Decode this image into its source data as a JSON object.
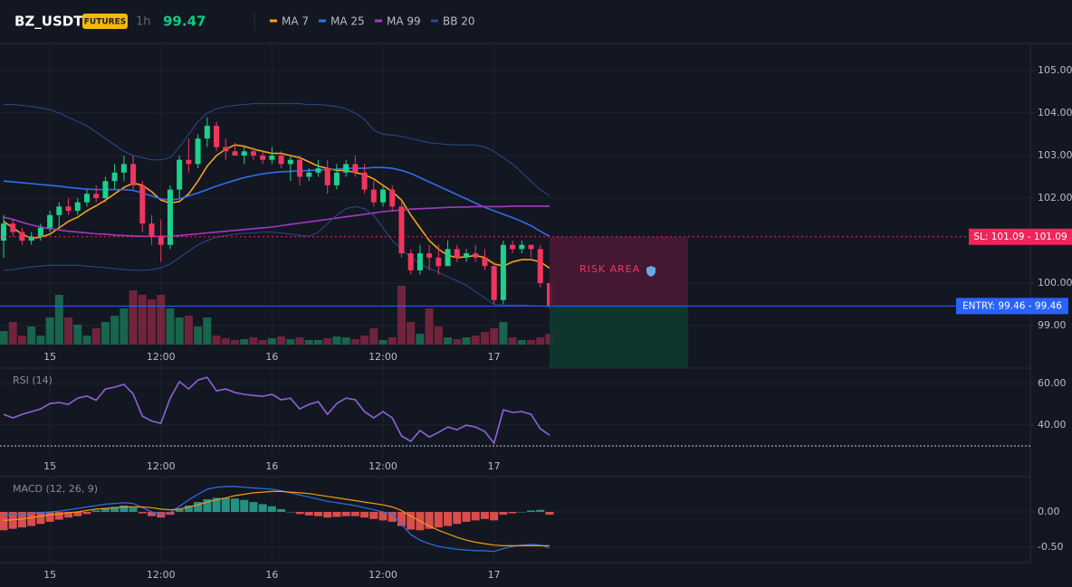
{
  "header": {
    "symbol": "BZ_USDT",
    "badge": "FUTURES",
    "interval": "1h",
    "price": 99.47
  },
  "chart_data": [
    {
      "type": "candlestick",
      "categories": [
        null,
        null,
        null,
        null,
        null,
        "15",
        null,
        null,
        null,
        null,
        null,
        null,
        null,
        null,
        null,
        null,
        null,
        "12:00",
        null,
        null,
        null,
        null,
        null,
        null,
        null,
        null,
        null,
        null,
        null,
        "16",
        null,
        null,
        null,
        null,
        null,
        null,
        null,
        null,
        null,
        null,
        null,
        "12:00",
        null,
        null,
        null,
        null,
        null,
        null,
        null,
        null,
        null,
        null,
        null,
        "17",
        null,
        null,
        null,
        null,
        null,
        null
      ],
      "open": [
        101.0,
        101.4,
        101.2,
        101.0,
        101.1,
        101.3,
        101.6,
        101.8,
        101.7,
        101.9,
        102.1,
        102.0,
        102.4,
        102.6,
        102.8,
        102.3,
        101.4,
        101.1,
        100.9,
        102.2,
        102.9,
        102.8,
        103.4,
        103.7,
        103.2,
        103.1,
        103.0,
        103.1,
        103.0,
        102.9,
        103.0,
        102.8,
        102.9,
        102.5,
        102.6,
        102.7,
        102.3,
        102.6,
        102.8,
        102.6,
        102.2,
        101.9,
        102.2,
        101.8,
        100.7,
        100.3,
        100.7,
        100.6,
        100.4,
        100.8,
        100.6,
        100.7,
        100.6,
        100.4,
        99.6,
        100.9,
        100.8,
        100.9,
        100.8,
        100.0
      ],
      "high": [
        101.6,
        101.5,
        101.3,
        101.2,
        101.4,
        101.7,
        101.9,
        102.0,
        102.0,
        102.2,
        102.3,
        102.5,
        102.8,
        103.0,
        103.0,
        102.4,
        101.6,
        101.5,
        102.3,
        103.0,
        103.4,
        103.5,
        103.9,
        103.8,
        103.4,
        103.3,
        103.2,
        103.2,
        103.1,
        103.2,
        103.1,
        103.0,
        103.0,
        102.7,
        102.9,
        102.9,
        102.8,
        102.9,
        103.0,
        102.8,
        102.4,
        102.3,
        102.3,
        101.9,
        100.8,
        100.9,
        100.9,
        100.9,
        101.0,
        100.9,
        100.8,
        100.9,
        100.8,
        100.5,
        101.0,
        101.0,
        101.0,
        100.9,
        100.9,
        100.0
      ],
      "low": [
        100.6,
        101.1,
        100.9,
        100.9,
        101.0,
        101.2,
        101.3,
        101.6,
        101.6,
        101.8,
        101.9,
        101.9,
        102.2,
        102.4,
        102.2,
        101.2,
        100.9,
        100.5,
        100.8,
        102.0,
        102.6,
        102.7,
        103.2,
        103.1,
        102.9,
        103.0,
        102.8,
        102.9,
        102.8,
        102.8,
        102.7,
        102.4,
        102.3,
        102.4,
        102.5,
        102.1,
        102.2,
        102.5,
        102.5,
        102.1,
        101.8,
        101.8,
        101.7,
        100.6,
        100.2,
        100.2,
        100.3,
        100.2,
        100.4,
        100.5,
        100.5,
        100.5,
        100.3,
        99.5,
        99.5,
        100.7,
        100.7,
        100.6,
        99.9,
        99.4
      ],
      "close": [
        101.4,
        101.2,
        101.0,
        101.1,
        101.3,
        101.6,
        101.8,
        101.7,
        101.9,
        102.1,
        102.0,
        102.4,
        102.6,
        102.8,
        102.3,
        101.4,
        101.1,
        100.9,
        102.2,
        102.9,
        102.8,
        103.4,
        103.7,
        103.2,
        103.1,
        103.0,
        103.1,
        103.0,
        102.9,
        103.0,
        102.8,
        102.9,
        102.5,
        102.6,
        102.7,
        102.3,
        102.6,
        102.8,
        102.6,
        102.2,
        101.9,
        102.2,
        101.8,
        100.7,
        100.3,
        100.7,
        100.6,
        100.4,
        100.8,
        100.6,
        100.7,
        100.6,
        100.4,
        99.6,
        100.9,
        100.8,
        100.9,
        100.8,
        100.0,
        99.47
      ],
      "volume": [
        15,
        25,
        10,
        20,
        10,
        30,
        55,
        30,
        22,
        10,
        18,
        25,
        32,
        40,
        60,
        55,
        50,
        55,
        40,
        30,
        32,
        20,
        30,
        10,
        7,
        5,
        6,
        8,
        5,
        7,
        9,
        6,
        8,
        5,
        5,
        7,
        9,
        8,
        6,
        10,
        18,
        5,
        8,
        65,
        25,
        12,
        40,
        20,
        8,
        6,
        8,
        10,
        14,
        18,
        25,
        8,
        5,
        5,
        8,
        12
      ],
      "up_color": "#1fd08c",
      "down_color": "#f0365f",
      "series": [
        {
          "name": "MA 7",
          "color": "#f7a21b",
          "values": [
            101.45,
            101.3,
            101.15,
            101.05,
            101.08,
            101.15,
            101.3,
            101.45,
            101.55,
            101.7,
            101.82,
            101.95,
            102.1,
            102.25,
            102.35,
            102.3,
            102.15,
            101.95,
            101.88,
            101.92,
            102.1,
            102.4,
            102.75,
            103.0,
            103.15,
            103.25,
            103.22,
            103.15,
            103.1,
            103.05,
            103.05,
            103.0,
            102.95,
            102.85,
            102.75,
            102.7,
            102.65,
            102.65,
            102.6,
            102.55,
            102.45,
            102.3,
            102.15,
            101.95,
            101.6,
            101.3,
            101.0,
            100.8,
            100.65,
            100.6,
            100.62,
            100.65,
            100.6,
            100.45,
            100.4,
            100.5,
            100.55,
            100.55,
            100.5,
            100.35
          ]
        },
        {
          "name": "MA 25",
          "color": "#2f6fea",
          "values": [
            102.4,
            102.38,
            102.36,
            102.34,
            102.32,
            102.3,
            102.28,
            102.25,
            102.23,
            102.21,
            102.2,
            102.2,
            102.2,
            102.2,
            102.18,
            102.12,
            102.05,
            101.98,
            101.95,
            101.98,
            102.05,
            102.12,
            102.2,
            102.28,
            102.35,
            102.42,
            102.48,
            102.53,
            102.57,
            102.6,
            102.62,
            102.63,
            102.64,
            102.65,
            102.66,
            102.67,
            102.68,
            102.7,
            102.7,
            102.7,
            102.72,
            102.72,
            102.7,
            102.65,
            102.58,
            102.48,
            102.38,
            102.28,
            102.18,
            102.08,
            101.98,
            101.88,
            101.78,
            101.7,
            101.62,
            101.54,
            101.45,
            101.35,
            101.22,
            101.1
          ]
        },
        {
          "name": "MA 99",
          "color": "#a23ac0",
          "values": [
            101.55,
            101.5,
            101.43,
            101.37,
            101.32,
            101.28,
            101.25,
            101.22,
            101.2,
            101.18,
            101.16,
            101.15,
            101.13,
            101.12,
            101.11,
            101.1,
            101.1,
            101.1,
            101.1,
            101.12,
            101.14,
            101.16,
            101.18,
            101.2,
            101.22,
            101.24,
            101.26,
            101.28,
            101.3,
            101.32,
            101.35,
            101.38,
            101.41,
            101.44,
            101.47,
            101.5,
            101.53,
            101.56,
            101.59,
            101.62,
            101.65,
            101.68,
            101.7,
            101.72,
            101.74,
            101.75,
            101.76,
            101.77,
            101.78,
            101.79,
            101.79,
            101.8,
            101.8,
            101.8,
            101.8,
            101.81,
            101.81,
            101.81,
            101.81,
            101.81
          ]
        },
        {
          "name": "BB 20",
          "color": "#2b4a8f",
          "upper": [
            104.2,
            104.2,
            104.18,
            104.15,
            104.12,
            104.08,
            104.0,
            103.9,
            103.8,
            103.7,
            103.55,
            103.4,
            103.25,
            103.1,
            103.0,
            102.95,
            102.9,
            102.9,
            102.95,
            103.2,
            103.5,
            103.8,
            104.0,
            104.1,
            104.15,
            104.18,
            104.2,
            104.22,
            104.22,
            104.22,
            104.22,
            104.22,
            104.22,
            104.2,
            104.2,
            104.18,
            104.15,
            104.1,
            104.0,
            103.85,
            103.6,
            103.5,
            103.48,
            103.45,
            103.4,
            103.35,
            103.3,
            103.28,
            103.26,
            103.25,
            103.25,
            103.25,
            103.2,
            103.1,
            102.95,
            102.8,
            102.6,
            102.4,
            102.2,
            102.05
          ],
          "lower": [
            100.3,
            100.32,
            100.35,
            100.38,
            100.4,
            100.42,
            100.42,
            100.42,
            100.42,
            100.4,
            100.38,
            100.36,
            100.34,
            100.32,
            100.3,
            100.3,
            100.32,
            100.36,
            100.45,
            100.6,
            100.75,
            100.9,
            101.0,
            101.08,
            101.12,
            101.15,
            101.17,
            101.18,
            101.2,
            101.2,
            101.18,
            101.15,
            101.12,
            101.1,
            101.2,
            101.4,
            101.6,
            101.75,
            101.8,
            101.75,
            101.6,
            101.3,
            101.0,
            100.8,
            100.6,
            100.45,
            100.35,
            100.25,
            100.15,
            100.05,
            99.95,
            99.8,
            99.65,
            99.5,
            99.48,
            99.48,
            99.48,
            99.47,
            99.46,
            99.45
          ]
        }
      ],
      "ylim": [
        98.0,
        105.638
      ],
      "yticks": [
        {
          "value": 105,
          "label": "105.00"
        },
        {
          "value": 104,
          "label": "104.00"
        },
        {
          "value": 103,
          "label": "103.00"
        },
        {
          "value": 102,
          "label": "102.00"
        },
        {
          "value": 100,
          "label": "100.00"
        },
        {
          "value": 99,
          "label": "99.00"
        }
      ],
      "sl": {
        "value": 101.09,
        "label": "SL: 101.09 - 101.09",
        "color": "#f2245a"
      },
      "entry": {
        "value": 99.46,
        "label": "ENTRY: 99.46 - 99.46",
        "color": "#2962ff"
      },
      "annotation": "RISK AREA",
      "grid": true
    },
    {
      "type": "line",
      "title": "RSI (14)",
      "categories": [
        null,
        null,
        null,
        null,
        null,
        "15",
        null,
        null,
        null,
        null,
        null,
        null,
        null,
        null,
        null,
        null,
        null,
        "12:00",
        null,
        null,
        null,
        null,
        null,
        null,
        null,
        null,
        null,
        null,
        null,
        "16",
        null,
        null,
        null,
        null,
        null,
        null,
        null,
        null,
        null,
        null,
        null,
        "12:00",
        null,
        null,
        null,
        null,
        null,
        null,
        null,
        null,
        null,
        null,
        null,
        "17",
        null,
        null,
        null,
        null,
        null,
        null
      ],
      "values": [
        45.2,
        43.5,
        45.2,
        46.5,
        47.8,
        50.4,
        50.9,
        50.0,
        53.0,
        54.0,
        52.0,
        57.4,
        58.3,
        59.6,
        55.0,
        44.3,
        42.0,
        40.9,
        53.0,
        61.0,
        57.4,
        61.7,
        63.0,
        56.5,
        57.4,
        55.7,
        54.8,
        54.3,
        53.9,
        54.8,
        52.2,
        53.0,
        47.8,
        50.0,
        51.3,
        45.2,
        50.4,
        53.0,
        52.2,
        46.5,
        43.5,
        46.5,
        43.5,
        34.8,
        32.2,
        37.4,
        34.3,
        36.5,
        39.1,
        37.8,
        40.0,
        39.1,
        37.0,
        31.3,
        47.4,
        46.1,
        46.5,
        45.2,
        38.3,
        35.2
      ],
      "color": "#8e63d8",
      "level": 30,
      "ylim": [
        24.8,
        67.0
      ],
      "yticks": [
        {
          "value": 60,
          "label": "60.00"
        },
        {
          "value": 40,
          "label": "40.00"
        }
      ],
      "grid": true
    },
    {
      "type": "macd",
      "title": "MACD (12, 26, 9)",
      "categories": [
        null,
        null,
        null,
        null,
        null,
        "15",
        null,
        null,
        null,
        null,
        null,
        null,
        null,
        null,
        null,
        null,
        null,
        "12:00",
        null,
        null,
        null,
        null,
        null,
        null,
        null,
        null,
        null,
        null,
        null,
        "16",
        null,
        null,
        null,
        null,
        null,
        null,
        null,
        null,
        null,
        null,
        null,
        "12:00",
        null,
        null,
        null,
        null,
        null,
        null,
        null,
        null,
        null,
        null,
        null,
        "17",
        null,
        null,
        null,
        null,
        null,
        null
      ],
      "histogram": {
        "up_color": "#2a9d8f",
        "down_color": "#ef5350",
        "values": [
          -0.26,
          -0.24,
          -0.22,
          -0.2,
          -0.17,
          -0.14,
          -0.11,
          -0.08,
          -0.06,
          -0.03,
          0.02,
          0.05,
          0.07,
          0.09,
          0.06,
          -0.02,
          -0.06,
          -0.08,
          -0.04,
          0.04,
          0.09,
          0.14,
          0.18,
          0.2,
          0.2,
          0.19,
          0.17,
          0.14,
          0.11,
          0.08,
          0.04,
          0.0,
          -0.03,
          -0.05,
          -0.06,
          -0.08,
          -0.07,
          -0.06,
          -0.06,
          -0.08,
          -0.1,
          -0.12,
          -0.14,
          -0.2,
          -0.25,
          -0.26,
          -0.24,
          -0.22,
          -0.2,
          -0.17,
          -0.14,
          -0.12,
          -0.1,
          -0.12,
          -0.04,
          -0.02,
          0.0,
          0.02,
          0.03,
          -0.04
        ]
      },
      "series": [
        {
          "color": "#2f6fea",
          "values": [
            -0.05,
            -0.04,
            -0.03,
            -0.02,
            -0.01,
            0.0,
            0.01,
            0.03,
            0.05,
            0.07,
            0.09,
            0.11,
            0.12,
            0.13,
            0.12,
            0.06,
            0.0,
            -0.03,
            -0.01,
            0.08,
            0.17,
            0.25,
            0.32,
            0.35,
            0.36,
            0.36,
            0.35,
            0.34,
            0.33,
            0.32,
            0.3,
            0.27,
            0.24,
            0.21,
            0.18,
            0.15,
            0.13,
            0.11,
            0.09,
            0.06,
            0.03,
            0.0,
            -0.03,
            -0.18,
            -0.32,
            -0.4,
            -0.45,
            -0.49,
            -0.51,
            -0.53,
            -0.54,
            -0.55,
            -0.55,
            -0.56,
            -0.52,
            -0.49,
            -0.47,
            -0.46,
            -0.47,
            -0.51
          ]
        },
        {
          "color": "#f39c12",
          "values": [
            -0.12,
            -0.11,
            -0.1,
            -0.08,
            -0.06,
            -0.04,
            -0.03,
            -0.01,
            0.0,
            0.02,
            0.04,
            0.05,
            0.06,
            0.07,
            0.07,
            0.07,
            0.06,
            0.04,
            0.03,
            0.04,
            0.07,
            0.1,
            0.14,
            0.17,
            0.2,
            0.23,
            0.25,
            0.27,
            0.28,
            0.29,
            0.29,
            0.28,
            0.27,
            0.26,
            0.24,
            0.22,
            0.2,
            0.18,
            0.16,
            0.14,
            0.12,
            0.1,
            0.07,
            0.02,
            -0.06,
            -0.13,
            -0.2,
            -0.26,
            -0.31,
            -0.36,
            -0.4,
            -0.43,
            -0.45,
            -0.47,
            -0.48,
            -0.48,
            -0.48,
            -0.48,
            -0.48,
            -0.48
          ]
        }
      ],
      "ylim": [
        -0.718,
        0.487
      ],
      "yticks": [
        {
          "value": 0,
          "label": "0.00"
        },
        {
          "value": -0.5,
          "label": "-0.50"
        }
      ],
      "grid": true
    }
  ]
}
